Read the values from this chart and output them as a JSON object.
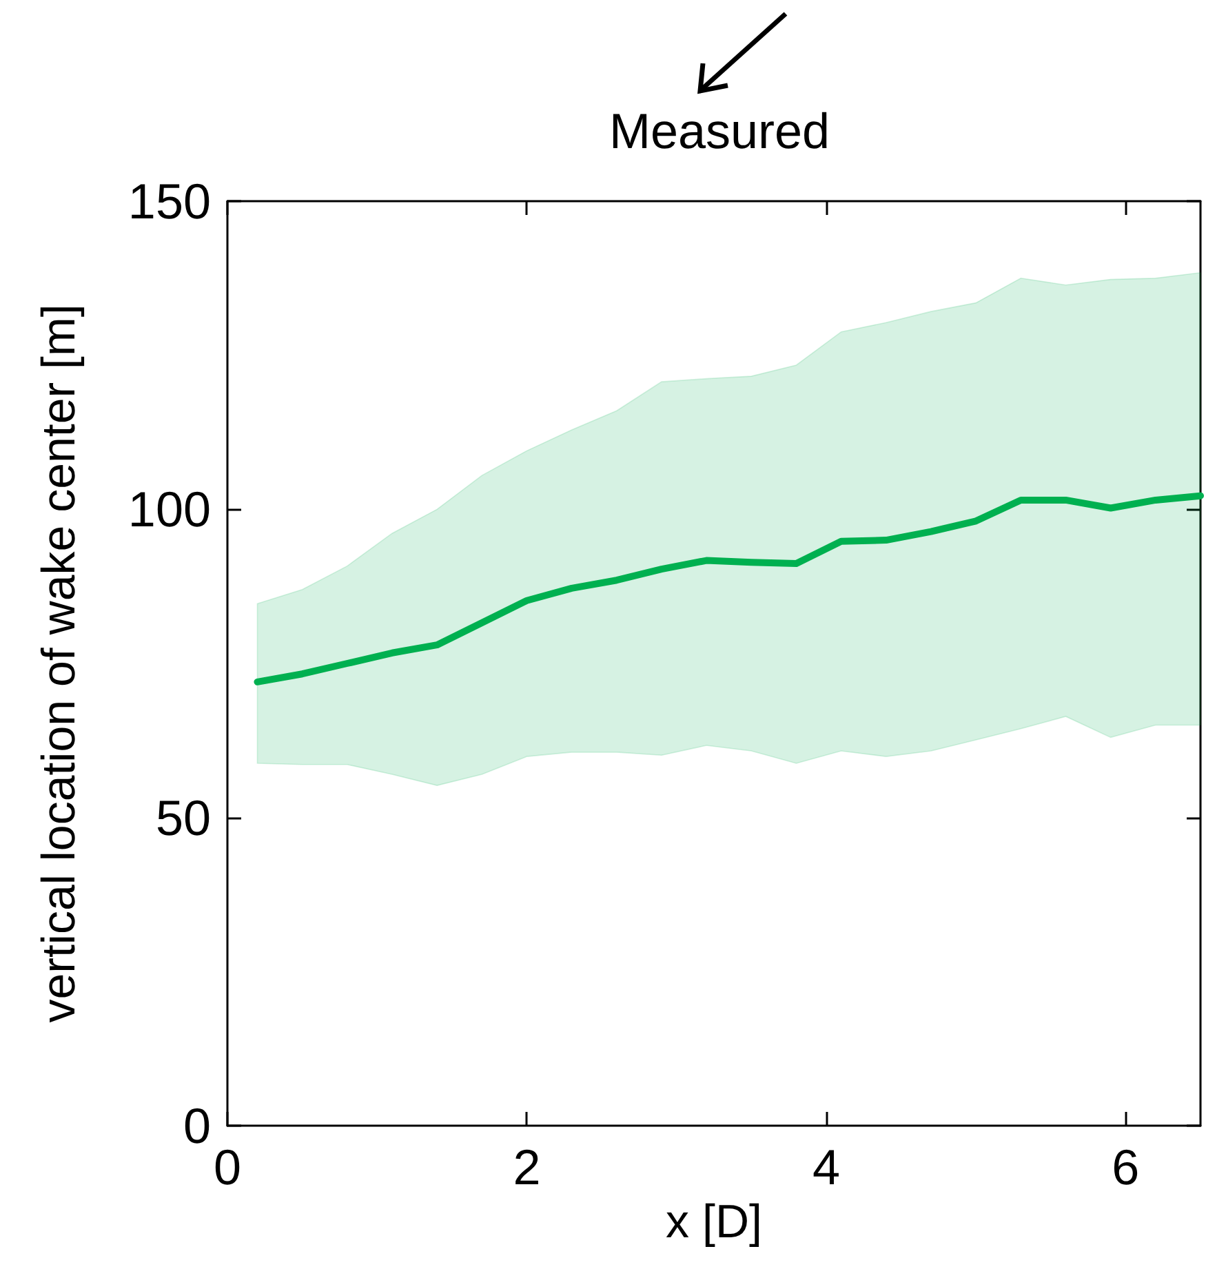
{
  "chart_data": {
    "type": "line",
    "title": "Measured",
    "xlabel": "x [D]",
    "ylabel": "vertical location of wake center [m]",
    "x": [
      0.2,
      0.5,
      0.8,
      1.1,
      1.4,
      1.7,
      2.0,
      2.3,
      2.6,
      2.9,
      3.2,
      3.5,
      3.8,
      4.1,
      4.4,
      4.7,
      5.0,
      5.3,
      5.6,
      5.9,
      6.2,
      6.5
    ],
    "series": [
      {
        "color": "#00b050",
        "values": [
          72,
          73.3,
          75,
          76.7,
          78,
          81.6,
          85.2,
          87.2,
          88.5,
          90.3,
          91.7,
          91.4,
          91.2,
          94.8,
          95,
          96.4,
          98.1,
          101.5,
          101.5,
          100.2,
          101.5,
          102.2
        ],
        "upper": [
          84.7,
          87,
          90.8,
          96.1,
          100,
          105.5,
          109.5,
          112.9,
          116,
          120.7,
          121.2,
          121.6,
          123.4,
          128.8,
          130.3,
          132.1,
          133.5,
          137.5,
          136.4,
          137.3,
          137.5,
          138.4
        ],
        "lower": [
          58.8,
          58.6,
          58.6,
          57,
          55.2,
          57,
          59.9,
          60.6,
          60.6,
          60.1,
          61.7,
          60.8,
          58.8,
          60.8,
          59.9,
          60.8,
          62.6,
          64.4,
          66.4,
          63,
          65,
          65
        ]
      }
    ],
    "xlim": [
      0,
      6.5
    ],
    "xticks": [
      0,
      2,
      4,
      6
    ],
    "ylim": [
      0,
      150
    ],
    "yticks": [
      0,
      50,
      100,
      150
    ],
    "grid": false,
    "marker": "none",
    "line_style": "solid"
  }
}
